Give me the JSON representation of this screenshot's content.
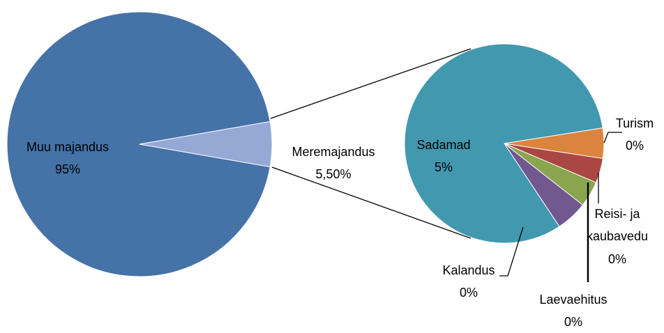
{
  "chart_data": [
    {
      "type": "pie",
      "categories": [
        "Muu majandus",
        "Meremajandus"
      ],
      "values": [
        95,
        5.5
      ],
      "value_labels": [
        "95%",
        "5,50%"
      ],
      "colors": [
        "#4572a7",
        "#95a9d5"
      ]
    },
    {
      "type": "pie",
      "categories": [
        "Sadamad",
        "Turism",
        "Reisi- ja kaubavedu",
        "Laevaehitus",
        "Kalandus"
      ],
      "values": [
        4.5,
        0.27,
        0.22,
        0.23,
        0.28
      ],
      "value_labels": [
        "5%",
        "0%",
        "0%",
        "0%",
        "0%"
      ],
      "colors": [
        "#4198af",
        "#db843d",
        "#aa4643",
        "#89a54e",
        "#71588f"
      ]
    }
  ]
}
